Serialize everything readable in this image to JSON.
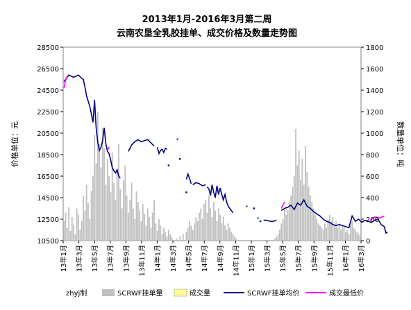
{
  "chart_data": {
    "type": "bar+line",
    "title_line1": "2013年1月-2016年3月第二周",
    "title_line2": "云南农垦全乳胶挂单、成交价格及数量走势图",
    "ylabel_left": "价格单位：元",
    "ylabel_right": "数量单位：吨",
    "ylim_left": [
      10500,
      28500
    ],
    "ylim_right": [
      0,
      1800
    ],
    "yticks_left": [
      "10500",
      "12500",
      "14500",
      "16500",
      "18500",
      "20500",
      "22500",
      "24500",
      "26500",
      "28500"
    ],
    "yticks_right": [
      "0",
      "200",
      "400",
      "600",
      "800",
      "1000",
      "1200",
      "1400",
      "1600",
      "1800"
    ],
    "xticks": [
      "13年1月",
      "13年3月",
      "13年5月",
      "13年7月",
      "13年9月",
      "13年11月",
      "14年1月",
      "14年3月",
      "14年5月",
      "14年7月",
      "14年9月",
      "14年11月",
      "15年1月",
      "15年3月",
      "15年5月",
      "15年7月",
      "15年9月",
      "15年11月",
      "16年1月",
      "16年3月"
    ],
    "credit": "zhyj制",
    "legend": [
      {
        "name": "SCRWF挂单量",
        "color": "#c0c0c0",
        "kind": "bar"
      },
      {
        "name": "成交量",
        "color": "#ffff99",
        "kind": "bar"
      },
      {
        "name": "SCRWF挂单均价",
        "color": "#000080",
        "kind": "line"
      },
      {
        "name": "成交最低价",
        "color": "#ff00ff",
        "kind": "line"
      }
    ],
    "listing_volume_tons": {
      "period": "weekly, 2013-01 to 2016-03",
      "values": [
        180,
        260,
        120,
        310,
        90,
        220,
        150,
        60,
        300,
        240,
        100,
        180,
        420,
        280,
        520,
        350,
        200,
        460,
        600,
        980,
        720,
        1200,
        900,
        680,
        1050,
        860,
        520,
        760,
        600,
        450,
        820,
        540,
        380,
        650,
        900,
        480,
        300,
        560,
        700,
        420,
        260,
        380,
        540,
        300,
        200,
        460,
        360,
        280,
        180,
        340,
        250,
        140,
        300,
        220,
        120,
        260,
        380,
        160,
        90,
        200,
        140,
        60,
        120,
        80,
        40,
        100,
        60,
        30,
        0,
        0,
        20,
        0,
        40,
        0,
        60,
        0,
        80,
        120,
        180,
        140,
        100,
        160,
        220,
        180,
        260,
        300,
        200,
        340,
        380,
        260,
        420,
        300,
        220,
        360,
        280,
        180,
        300,
        240,
        160,
        220,
        140,
        100,
        160,
        120,
        80,
        60,
        40,
        20,
        0,
        0,
        0,
        0,
        0,
        0,
        0,
        0,
        0,
        0,
        0,
        0,
        0,
        0,
        0,
        0,
        0,
        0,
        0,
        0,
        0,
        0,
        0,
        20,
        40,
        60,
        100,
        160,
        200,
        300,
        240,
        280,
        360,
        420,
        500,
        600,
        1040,
        700,
        840,
        560,
        760,
        520,
        880,
        640,
        500,
        420,
        360,
        300,
        240,
        200,
        160,
        140,
        120,
        100,
        160,
        120,
        200,
        240,
        180,
        220,
        140,
        180,
        120,
        160,
        100,
        140,
        120,
        80,
        100,
        60,
        140,
        180,
        120,
        100,
        80,
        60,
        40
      ]
    },
    "avg_listing_price": {
      "series": [
        [
          [
            0,
            25300
          ],
          [
            3,
            25900
          ],
          [
            6,
            25700
          ],
          [
            9,
            25900
          ],
          [
            11,
            25600
          ],
          [
            12,
            25500
          ],
          [
            13,
            24800
          ],
          [
            14,
            24000
          ],
          [
            15,
            23500
          ],
          [
            16,
            23000
          ],
          [
            17,
            22300
          ],
          [
            18,
            21500
          ],
          [
            19,
            23600
          ],
          [
            20,
            21000
          ],
          [
            21,
            19600
          ],
          [
            22,
            18900
          ],
          [
            23,
            19200
          ],
          [
            24,
            19800
          ],
          [
            25,
            21000
          ],
          [
            26,
            19500
          ],
          [
            27,
            18800
          ],
          [
            28,
            18600
          ],
          [
            29,
            18000
          ],
          [
            30,
            17300
          ],
          [
            31,
            17000
          ],
          [
            32,
            16800
          ],
          [
            33,
            17100
          ],
          [
            34,
            16500
          ],
          [
            35,
            16300
          ]
        ],
        [
          [
            40,
            18800
          ],
          [
            42,
            19400
          ],
          [
            44,
            19700
          ],
          [
            46,
            19900
          ],
          [
            48,
            19700
          ],
          [
            50,
            19800
          ],
          [
            52,
            19900
          ],
          [
            54,
            19600
          ],
          [
            56,
            19300
          ]
        ],
        [
          [
            58,
            19200
          ],
          [
            59,
            18600
          ],
          [
            60,
            18900
          ],
          [
            61,
            19000
          ],
          [
            62,
            18700
          ],
          [
            63,
            19100
          ],
          [
            64,
            19000
          ]
        ],
        [
          [
            70,
            19900
          ],
          [
            71,
            20000
          ]
        ],
        [
          [
            76,
            16200
          ],
          [
            77,
            16700
          ],
          [
            78,
            16300
          ],
          [
            79,
            15800
          ]
        ],
        [
          [
            80,
            15700
          ],
          [
            82,
            15900
          ],
          [
            84,
            15800
          ],
          [
            86,
            15600
          ],
          [
            88,
            15700
          ]
        ],
        [
          [
            89,
            15500
          ],
          [
            90,
            15300
          ],
          [
            91,
            14700
          ],
          [
            92,
            15700
          ],
          [
            93,
            15000
          ],
          [
            94,
            14500
          ],
          [
            95,
            15600
          ],
          [
            96,
            14800
          ],
          [
            97,
            15400
          ],
          [
            98,
            14800
          ],
          [
            99,
            14300
          ],
          [
            100,
            14800
          ],
          [
            101,
            14100
          ],
          [
            102,
            13700
          ],
          [
            103,
            13500
          ],
          [
            104,
            13300
          ],
          [
            105,
            13100
          ]
        ],
        [
          [
            113,
            13700
          ],
          [
            114,
            13700
          ]
        ],
        [
          [
            120,
            12600
          ],
          [
            121,
            12600
          ]
        ],
        [
          [
            124,
            12400
          ],
          [
            126,
            12400
          ],
          [
            128,
            12300
          ],
          [
            130,
            12300
          ],
          [
            132,
            12400
          ]
        ],
        [
          [
            135,
            13300
          ],
          [
            137,
            13500
          ],
          [
            139,
            13600
          ],
          [
            141,
            13800
          ],
          [
            143,
            13400
          ],
          [
            145,
            14000
          ],
          [
            147,
            13800
          ],
          [
            149,
            14300
          ],
          [
            151,
            13700
          ],
          [
            153,
            13500
          ],
          [
            155,
            13200
          ],
          [
            157,
            13000
          ],
          [
            159,
            12800
          ],
          [
            161,
            12500
          ],
          [
            163,
            12300
          ],
          [
            165,
            12200
          ],
          [
            167,
            12000
          ],
          [
            169,
            11900
          ],
          [
            171,
            12000
          ],
          [
            173,
            11900
          ],
          [
            175,
            11800
          ],
          [
            177,
            11700
          ],
          [
            179,
            12800
          ],
          [
            181,
            12300
          ],
          [
            183,
            12500
          ],
          [
            185,
            12200
          ],
          [
            187,
            12400
          ],
          [
            189,
            12300
          ],
          [
            191,
            12200
          ],
          [
            193,
            12400
          ],
          [
            195,
            12500
          ],
          [
            197,
            12000
          ],
          [
            199,
            11800
          ],
          [
            200,
            11200
          ],
          [
            201,
            11300
          ]
        ]
      ],
      "isolated": [
        [
          65,
          17500
        ],
        [
          72,
          18100
        ],
        [
          76,
          15000
        ],
        [
          118,
          13500
        ],
        [
          122,
          12300
        ]
      ]
    },
    "min_deal_price": {
      "series": [
        [
          [
            0,
            24700
          ],
          [
            1,
            25400
          ],
          [
            2,
            25800
          ]
        ],
        [
          [
            27,
            18900
          ],
          [
            28,
            19200
          ]
        ],
        [
          [
            135,
            13500
          ],
          [
            137,
            14100
          ]
        ],
        [
          [
            190,
            12400
          ],
          [
            193,
            12700
          ],
          [
            196,
            12600
          ],
          [
            199,
            12800
          ]
        ]
      ]
    }
  }
}
